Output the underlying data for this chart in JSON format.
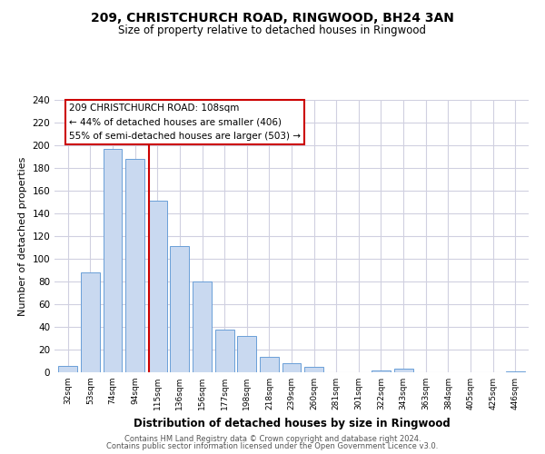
{
  "title": "209, CHRISTCHURCH ROAD, RINGWOOD, BH24 3AN",
  "subtitle": "Size of property relative to detached houses in Ringwood",
  "xlabel": "Distribution of detached houses by size in Ringwood",
  "ylabel": "Number of detached properties",
  "bar_labels": [
    "32sqm",
    "53sqm",
    "74sqm",
    "94sqm",
    "115sqm",
    "136sqm",
    "156sqm",
    "177sqm",
    "198sqm",
    "218sqm",
    "239sqm",
    "260sqm",
    "281sqm",
    "301sqm",
    "322sqm",
    "343sqm",
    "363sqm",
    "384sqm",
    "405sqm",
    "425sqm",
    "446sqm"
  ],
  "bar_values": [
    6,
    88,
    197,
    188,
    151,
    111,
    80,
    38,
    32,
    14,
    8,
    5,
    0,
    0,
    2,
    3,
    0,
    0,
    0,
    0,
    1
  ],
  "bar_color": "#c9d9f0",
  "bar_edge_color": "#6a9fd8",
  "annotation_text": "209 CHRISTCHURCH ROAD: 108sqm\n← 44% of detached houses are smaller (406)\n55% of semi-detached houses are larger (503) →",
  "annotation_box_color": "#ffffff",
  "annotation_box_edge": "#cc0000",
  "vline_color": "#cc0000",
  "vline_pos": 3.62,
  "ylim": [
    0,
    240
  ],
  "yticks": [
    0,
    20,
    40,
    60,
    80,
    100,
    120,
    140,
    160,
    180,
    200,
    220,
    240
  ],
  "footer1": "Contains HM Land Registry data © Crown copyright and database right 2024.",
  "footer2": "Contains public sector information licensed under the Open Government Licence v3.0.",
  "background_color": "#ffffff",
  "grid_color": "#d0d0e0"
}
